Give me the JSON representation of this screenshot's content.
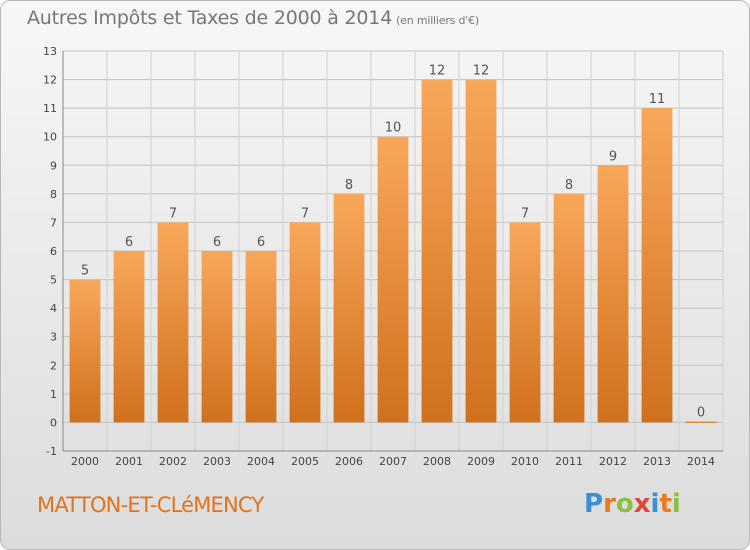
{
  "header": {
    "title": "Autres Impôts et Taxes de 2000 à 2014",
    "subtitle": "(en milliers d'€)"
  },
  "footer": {
    "commune": "MATTON-ET-CLéMENCY",
    "logo_text": "Proxiti"
  },
  "colors": {
    "bar_top": "#f8a75a",
    "bar_bottom": "#d0701c",
    "commune_text": "#e2731e",
    "axis_text": "#444444"
  },
  "chart_data": {
    "type": "bar",
    "title": "Autres Impôts et Taxes de 2000 à 2014",
    "subtitle": "(en milliers d'€)",
    "categories": [
      "2000",
      "2001",
      "2002",
      "2003",
      "2004",
      "2005",
      "2006",
      "2007",
      "2008",
      "2009",
      "2010",
      "2011",
      "2012",
      "2013",
      "2014"
    ],
    "values": [
      5,
      6,
      7,
      6,
      6,
      7,
      8,
      10,
      12,
      12,
      7,
      8,
      9,
      11,
      0
    ],
    "ylim": [
      -1,
      13
    ],
    "yticks": [
      -1,
      0,
      1,
      2,
      3,
      4,
      5,
      6,
      7,
      8,
      9,
      10,
      11,
      12,
      13
    ],
    "grid": true,
    "data_labels": true
  }
}
